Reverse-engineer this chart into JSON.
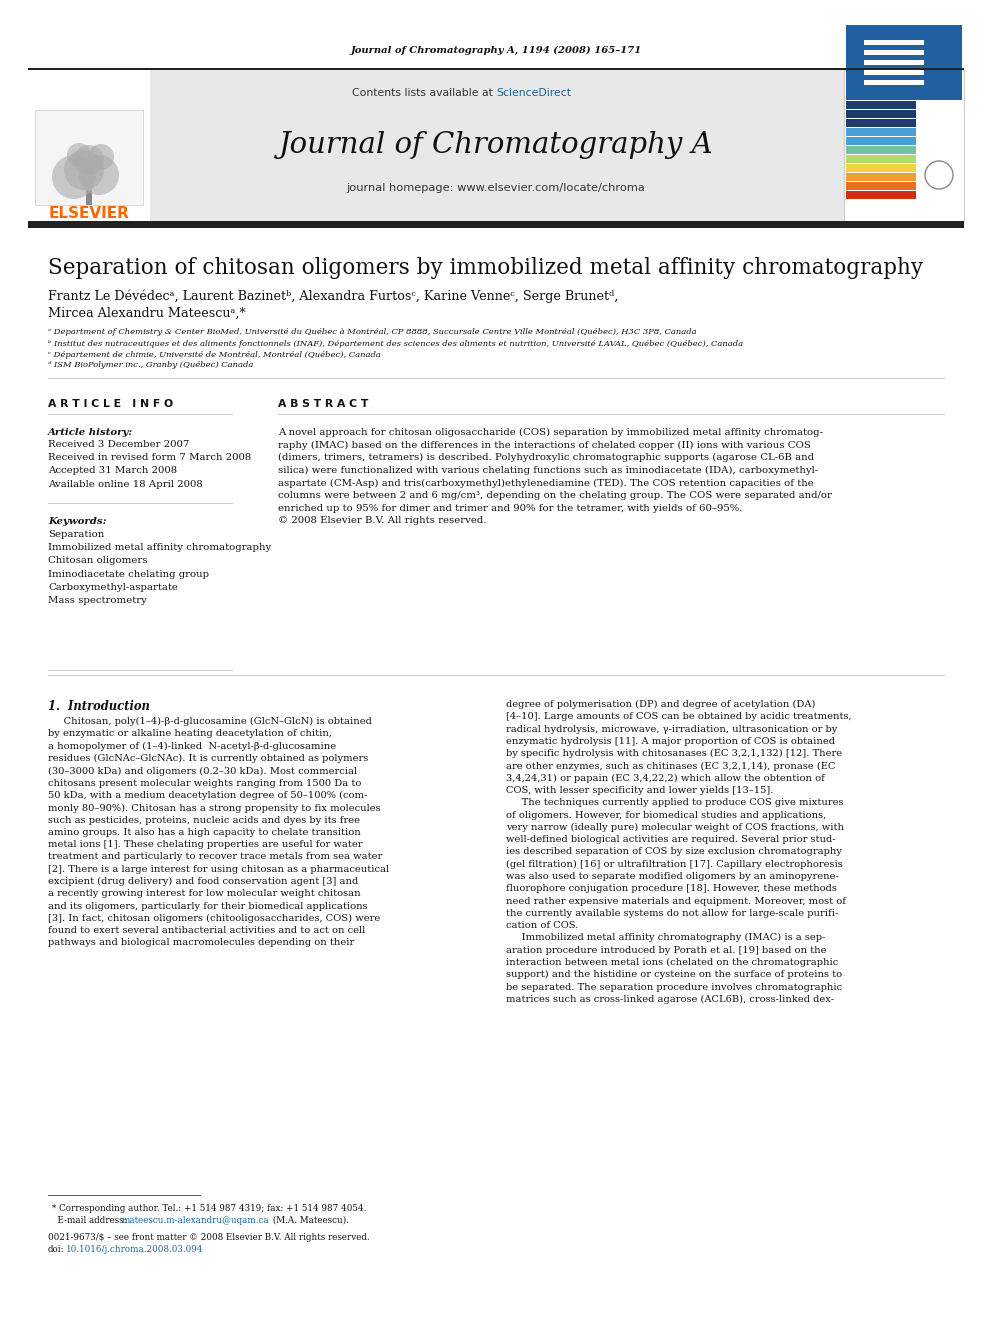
{
  "page_title": "Journal of Chromatography A, 1194 (2008) 165–171",
  "journal_name": "Journal of Chromatography A",
  "journal_homepage": "journal homepage: www.elsevier.com/locate/chroma",
  "contents_line_plain": "Contents lists available at ",
  "contents_line_link": "ScienceDirect",
  "article_title": "Separation of chitosan oligomers by immobilized metal affinity chromatography",
  "auth_line1": "Frantz Le Dévédecᵃ, Laurent Bazinetᵇ, Alexandra Furtosᶜ, Karine Venneᶜ, Serge Brunetᵈ,",
  "auth_line2": "Mircea Alexandru Mateescuᵃ,*",
  "affil_a": "ᵃ Department of Chemistry & Center BioMed, Université du Québec à Montréal, CP 8888, Succursale Centre Ville Montréal (Québec), H3C 3P8, Canada",
  "affil_b": "ᵇ Institut des nutraceutiques et des aliments fonctionnels (INAF), Département des sciences des aliments et nutrition, Université LAVAL, Québec (Québec), Canada",
  "affil_c": "ᶜ Département de chimie, Université de Montréal, Montréal (Québec), Canada",
  "affil_d": "ᵈ ISM BioPolymer inc., Granby (Québec) Canada",
  "article_info_header": "A R T I C L E   I N F O",
  "abstract_header": "A B S T R A C T",
  "article_history_header": "Article history:",
  "article_history": "Received 3 December 2007\nReceived in revised form 7 March 2008\nAccepted 31 March 2008\nAvailable online 18 April 2008",
  "keywords_header": "Keywords:",
  "keywords": "Separation\nImmobilized metal affinity chromatography\nChitosan oligomers\nIminodiacetate chelating group\nCarboxymethyl-aspartate\nMass spectrometry",
  "abstract_text": "A novel approach for chitosan oligosaccharide (COS) separation by immobilized metal affinity chromatog-\nraphy (IMAC) based on the differences in the interactions of chelated copper (II) ions with various COS\n(dimers, trimers, tetramers) is described. Polyhydroxylic chromatographic supports (agarose CL-6B and\nsilica) were functionalized with various chelating functions such as iminodiacetate (IDA), carboxymethyl-\naspartate (CM-Asp) and tris(carboxymethyl)ethylenediamine (TED). The COS retention capacities of the\ncolumns were between 2 and 6 mg/cm³, depending on the chelating group. The COS were separated and/or\nenriched up to 95% for dimer and trimer and 90% for the tetramer, with yields of 60–95%.\n© 2008 Elsevier B.V. All rights reserved.",
  "intro_header": "1.  Introduction",
  "intro_left": "     Chitosan, poly(1–4)-β-d-glucosamine (GlcN–GlcN) is obtained\nby enzymatic or alkaline heating deacetylation of chitin,\na homopolymer of (1–4)-linked  N-acetyl-β-d-glucosamine\nresidues (GlcNAc–GlcNAc). It is currently obtained as polymers\n(30–3000 kDa) and oligomers (0.2–30 kDa). Most commercial\nchitosans present molecular weights ranging from 1500 Da to\n50 kDa, with a medium deacetylation degree of 50–100% (com-\nmonly 80–90%). Chitosan has a strong propensity to fix molecules\nsuch as pesticides, proteins, nucleic acids and dyes by its free\namino groups. It also has a high capacity to chelate transition\nmetal ions [1]. These chelating properties are useful for water\ntreatment and particularly to recover trace metals from sea water\n[2]. There is a large interest for using chitosan as a pharmaceutical\nexcipient (drug delivery) and food conservation agent [3] and\na recently growing interest for low molecular weight chitosan\nand its oligomers, particularly for their biomedical applications\n[3]. In fact, chitosan oligomers (chitooligosaccharides, COS) were\nfound to exert several antibacterial activities and to act on cell\npathways and biological macromolecules depending on their",
  "intro_right": "degree of polymerisation (DP) and degree of acetylation (DA)\n[4–10]. Large amounts of COS can be obtained by acidic treatments,\nradical hydrolysis, microwave, γ-irradiation, ultrasonication or by\nenzymatic hydrolysis [11]. A major proportion of COS is obtained\nby specific hydrolysis with chitosanases (EC 3,2,1,132) [12]. There\nare other enzymes, such as chitinases (EC 3,2,1,14), pronase (EC\n3,4,24,31) or papain (EC 3,4,22,2) which allow the obtention of\nCOS, with lesser specificity and lower yields [13–15].\n     The techniques currently applied to produce COS give mixtures\nof oligomers. However, for biomedical studies and applications,\nvery narrow (ideally pure) molecular weight of COS fractions, with\nwell-defined biological activities are required. Several prior stud-\nies described separation of COS by size exclusion chromatography\n(gel filtration) [16] or ultrafiltration [17]. Capillary electrophoresis\nwas also used to separate modified oligomers by an aminopyrene-\nfluorophore conjugation procedure [18]. However, these methods\nneed rather expensive materials and equipment. Moreover, most of\nthe currently available systems do not allow for large-scale purifi-\ncation of COS.\n     Immobilized metal affinity chromatography (IMAC) is a sep-\naration procedure introduced by Porath et al. [19] based on the\ninteraction between metal ions (chelated on the chromatographic\nsupport) and the histidine or cysteine on the surface of proteins to\nbe separated. The separation procedure involves chromatographic\nmatrices such as cross-linked agarose (ACL6B), cross-linked dex-",
  "footnote_corr": "* Corresponding author. Tel.: +1 514 987 4319; fax: +1 514 987 4054.",
  "footnote_email_plain": "  E-mail address: ",
  "footnote_email_link": "mateescu.m-alexandru@uqam.ca",
  "footnote_email_suffix": " (M.A. Mateescu).",
  "footnote_issn": "0021-9673/$ – see front matter © 2008 Elsevier B.V. All rights reserved.",
  "footnote_doi_plain": "doi:",
  "footnote_doi_link": "10.1016/j.chroma.2008.03.094",
  "elsevier_color": "#FF6600",
  "sciencedirect_color": "#1a6496",
  "link_color": "#1a6496",
  "background_color": "#ffffff",
  "cover_bar_colors": [
    "#1f3c6e",
    "#1f3c6e",
    "#1f3c6e",
    "#4a9fd4",
    "#4a9fd4",
    "#75c2a0",
    "#b5d96a",
    "#f5d33a",
    "#f0a030",
    "#e87020",
    "#d03010"
  ],
  "dark_bar_color": "#222222"
}
